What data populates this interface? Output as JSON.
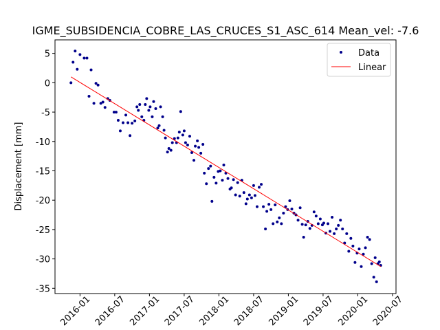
{
  "chart_data": {
    "type": "scatter",
    "title": "IGME_SUBSIDENCIA_COBRE_LAS_CRUCES_S1_ASC_614     Mean_vel: -7.6",
    "y_label": "Displacement [mm]",
    "xlim": [
      2015.64,
      2020.55
    ],
    "ylim": [
      -35.9,
      7.3
    ],
    "xticks": [
      {
        "value": 2016.0,
        "label": "2016-01"
      },
      {
        "value": 2016.5,
        "label": "2016-07"
      },
      {
        "value": 2017.0,
        "label": "2017-01"
      },
      {
        "value": 2017.5,
        "label": "2017-07"
      },
      {
        "value": 2018.0,
        "label": "2018-01"
      },
      {
        "value": 2018.5,
        "label": "2018-07"
      },
      {
        "value": 2019.0,
        "label": "2019-01"
      },
      {
        "value": 2019.5,
        "label": "2019-07"
      },
      {
        "value": 2020.0,
        "label": "2020-01"
      },
      {
        "value": 2020.5,
        "label": "2020-07"
      }
    ],
    "yticks": [
      5,
      0,
      -5,
      -10,
      -15,
      -20,
      -25,
      -30,
      -35
    ],
    "legend": "upper right",
    "series": [
      {
        "name": "Data",
        "color": "#00008b",
        "style": "marker",
        "x": [
          2015.87,
          2015.9,
          2015.93,
          2015.96,
          2016.0,
          2016.06,
          2016.1,
          2016.13,
          2016.16,
          2016.2,
          2016.23,
          2016.26,
          2016.3,
          2016.33,
          2016.36,
          2016.4,
          2016.43,
          2016.49,
          2016.52,
          2016.55,
          2016.58,
          2016.62,
          2016.66,
          2016.69,
          2016.72,
          2016.75,
          2016.79,
          2016.82,
          2016.84,
          2016.86,
          2016.89,
          2016.92,
          2016.94,
          2016.96,
          2016.99,
          2017.01,
          2017.04,
          2017.06,
          2017.09,
          2017.12,
          2017.14,
          2017.16,
          2017.19,
          2017.21,
          2017.23,
          2017.26,
          2017.28,
          2017.31,
          2017.33,
          2017.36,
          2017.39,
          2017.41,
          2017.43,
          2017.45,
          2017.48,
          2017.5,
          2017.52,
          2017.55,
          2017.58,
          2017.61,
          2017.64,
          2017.66,
          2017.69,
          2017.71,
          2017.74,
          2017.77,
          2017.79,
          2017.82,
          2017.85,
          2017.88,
          2017.9,
          2017.93,
          2017.96,
          2017.99,
          2018.02,
          2018.05,
          2018.07,
          2018.1,
          2018.13,
          2018.16,
          2018.18,
          2018.21,
          2018.24,
          2018.27,
          2018.3,
          2018.33,
          2018.36,
          2018.39,
          2018.41,
          2018.44,
          2018.47,
          2018.5,
          2018.52,
          2018.55,
          2018.58,
          2018.61,
          2018.64,
          2018.67,
          2018.69,
          2018.72,
          2018.75,
          2018.78,
          2018.81,
          2018.84,
          2018.87,
          2018.9,
          2018.93,
          2018.96,
          2018.99,
          2019.02,
          2019.05,
          2019.08,
          2019.11,
          2019.14,
          2019.17,
          2019.2,
          2019.22,
          2019.25,
          2019.28,
          2019.31,
          2019.34,
          2019.37,
          2019.4,
          2019.43,
          2019.46,
          2019.49,
          2019.51,
          2019.54,
          2019.57,
          2019.6,
          2019.63,
          2019.66,
          2019.69,
          2019.72,
          2019.75,
          2019.78,
          2019.81,
          2019.84,
          2019.87,
          2019.9,
          2019.93,
          2019.96,
          2019.99,
          2020.02,
          2020.05,
          2020.08,
          2020.11,
          2020.14,
          2020.17,
          2020.2,
          2020.23,
          2020.25,
          2020.27,
          2020.29,
          2020.31,
          2020.33
        ],
        "values": [
          0.0,
          3.5,
          5.4,
          2.3,
          4.8,
          4.2,
          4.2,
          -2.3,
          2.2,
          -3.5,
          -0.1,
          -0.4,
          -3.5,
          -3.3,
          -4.2,
          -2.7,
          -3.0,
          -5.0,
          -5.0,
          -6.4,
          -8.2,
          -6.8,
          -5.5,
          -6.8,
          -9.0,
          -6.9,
          -6.5,
          -4.1,
          -4.7,
          -3.7,
          -5.8,
          -6.4,
          -3.7,
          -2.7,
          -4.7,
          -4.1,
          -5.8,
          -3.2,
          -4.4,
          -7.7,
          -7.3,
          -4.1,
          -5.8,
          -8.1,
          -9.4,
          -11.8,
          -11.2,
          -11.5,
          -10.2,
          -9.5,
          -10.2,
          -9.4,
          -8.4,
          -4.9,
          -8.9,
          -8.2,
          -10.2,
          -10.6,
          -9.1,
          -11.9,
          -13.2,
          -10.8,
          -9.9,
          -11.0,
          -12.0,
          -10.5,
          -15.4,
          -17.2,
          -14.6,
          -14.2,
          -20.2,
          -16.1,
          -17.1,
          -15.1,
          -15.0,
          -16.6,
          -14.0,
          -15.4,
          -16.3,
          -18.1,
          -17.9,
          -16.5,
          -19.1,
          -17.0,
          -19.3,
          -16.6,
          -18.7,
          -20.6,
          -19.8,
          -19.1,
          -19.6,
          -17.5,
          -19.2,
          -21.1,
          -17.8,
          -17.3,
          -21.1,
          -24.9,
          -21.9,
          -20.7,
          -21.6,
          -24.0,
          -20.8,
          -23.7,
          -23.0,
          -24.0,
          -22.2,
          -21.1,
          -21.6,
          -20.1,
          -21.5,
          -22.2,
          -22.5,
          -23.4,
          -21.3,
          -24.1,
          -26.3,
          -24.2,
          -23.6,
          -24.8,
          -24.3,
          -22.0,
          -22.7,
          -24.0,
          -23.2,
          -24.2,
          -23.9,
          -25.6,
          -24.0,
          -25.3,
          -22.9,
          -25.7,
          -24.9,
          -24.3,
          -23.4,
          -24.9,
          -27.3,
          -25.7,
          -28.7,
          -26.5,
          -27.8,
          -30.6,
          -29.0,
          -28.3,
          -31.3,
          -29.2,
          -28.1,
          -26.3,
          -26.7,
          -30.8,
          -33.1,
          -29.8,
          -33.9,
          -30.8,
          -30.5,
          -31.1
        ]
      },
      {
        "name": "Linear",
        "color": "#ff0000",
        "style": "line",
        "x": [
          2015.87,
          2020.33
        ],
        "values": [
          1.0,
          -31.3
        ]
      }
    ]
  }
}
